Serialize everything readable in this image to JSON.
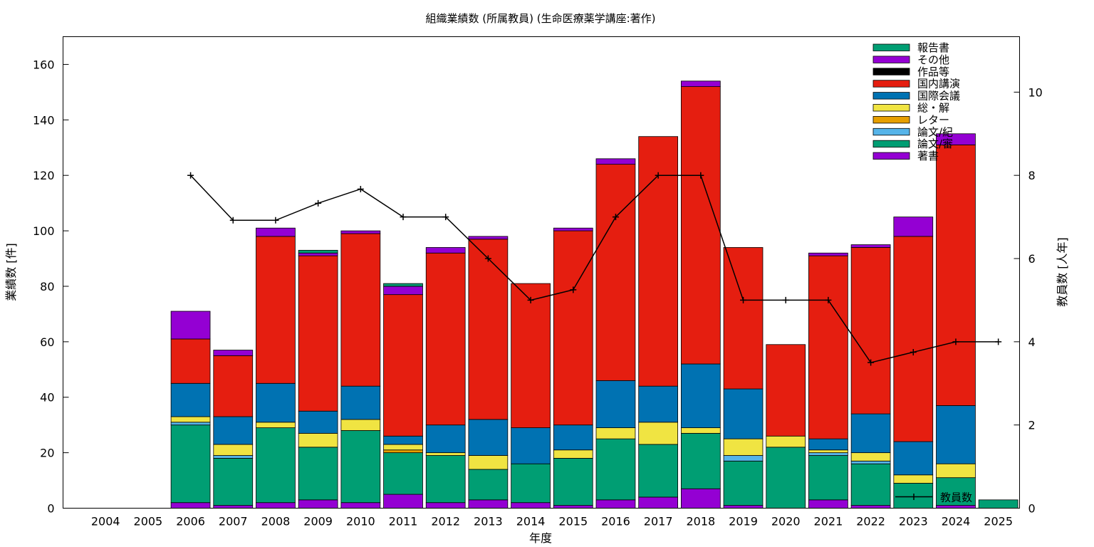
{
  "chart_data": {
    "type": "bar",
    "stacked": true,
    "title": "組織業績数 (所属教員) (生命医療薬学講座:著作)",
    "xlabel": "年度",
    "ylabel": "業績数 [件]",
    "y2label": "教員数 [人年]",
    "ylim": [
      0,
      170
    ],
    "y2lim": [
      0,
      11.333
    ],
    "yticks": [
      0,
      20,
      40,
      60,
      80,
      100,
      120,
      140,
      160
    ],
    "y2ticks": [
      0,
      2,
      4,
      6,
      8,
      10
    ],
    "grid": false,
    "legend_position": "top-right",
    "categories": [
      "2004",
      "2005",
      "2006",
      "2007",
      "2008",
      "2009",
      "2010",
      "2011",
      "2012",
      "2013",
      "2014",
      "2015",
      "2016",
      "2017",
      "2018",
      "2019",
      "2020",
      "2021",
      "2022",
      "2023",
      "2024",
      "2025"
    ],
    "series": [
      {
        "name": "著書",
        "color": "#9400d3",
        "values": [
          0,
          0,
          2,
          1,
          2,
          3,
          2,
          5,
          2,
          3,
          2,
          1,
          3,
          4,
          7,
          1,
          0,
          3,
          1,
          0,
          1,
          0
        ]
      },
      {
        "name": "論文/審",
        "color": "#009e73",
        "values": [
          0,
          0,
          28,
          17,
          27,
          19,
          26,
          15,
          17,
          11,
          14,
          17,
          22,
          19,
          20,
          16,
          22,
          16,
          15,
          9,
          10,
          3
        ]
      },
      {
        "name": "論文/紀",
        "color": "#56b4e9",
        "values": [
          0,
          0,
          1,
          1,
          0,
          0,
          0,
          0,
          0,
          0,
          0,
          0,
          0,
          0,
          0,
          2,
          0,
          1,
          1,
          0,
          0,
          0
        ]
      },
      {
        "name": "レター",
        "color": "#e69f00",
        "values": [
          0,
          0,
          0,
          0,
          0,
          0,
          0,
          1,
          0,
          0,
          0,
          0,
          0,
          0,
          0,
          0,
          0,
          0,
          0,
          0,
          0,
          0
        ]
      },
      {
        "name": "総・解",
        "color": "#f0e442",
        "values": [
          0,
          0,
          2,
          4,
          2,
          5,
          4,
          2,
          1,
          5,
          0,
          3,
          4,
          8,
          2,
          6,
          4,
          1,
          3,
          3,
          5,
          0
        ]
      },
      {
        "name": "国際会議",
        "color": "#0072b2",
        "values": [
          0,
          0,
          12,
          10,
          14,
          8,
          12,
          3,
          10,
          13,
          13,
          9,
          17,
          13,
          23,
          18,
          0,
          4,
          14,
          12,
          21,
          0
        ]
      },
      {
        "name": "国内講演",
        "color": "#e51e10",
        "values": [
          0,
          0,
          16,
          22,
          53,
          56,
          55,
          51,
          62,
          65,
          52,
          70,
          78,
          90,
          100,
          51,
          33,
          66,
          60,
          74,
          94,
          0
        ]
      },
      {
        "name": "作品等",
        "color": "#000000",
        "values": [
          0,
          0,
          0,
          0,
          0,
          0,
          0,
          0,
          0,
          0,
          0,
          0,
          0,
          0,
          0,
          0,
          0,
          0,
          0,
          0,
          0,
          0
        ]
      },
      {
        "name": "その他",
        "color": "#9400d3",
        "values": [
          0,
          0,
          10,
          2,
          3,
          1,
          1,
          3,
          2,
          1,
          0,
          1,
          2,
          0,
          2,
          0,
          0,
          1,
          1,
          7,
          4,
          0
        ]
      },
      {
        "name": "報告書",
        "color": "#009e73",
        "values": [
          0,
          0,
          0,
          0,
          0,
          1,
          0,
          1,
          0,
          0,
          0,
          0,
          0,
          0,
          0,
          0,
          0,
          0,
          0,
          0,
          0,
          0
        ]
      }
    ],
    "line_series": {
      "name": "教員数",
      "axis": "y2",
      "color": "#000000",
      "categories": [
        "2006",
        "2007",
        "2008",
        "2009",
        "2010",
        "2011",
        "2012",
        "2013",
        "2014",
        "2015",
        "2016",
        "2017",
        "2018",
        "2019",
        "2020",
        "2021",
        "2022",
        "2023",
        "2024",
        "2025"
      ],
      "values": [
        8.0,
        6.92,
        6.92,
        7.33,
        7.67,
        7.0,
        7.0,
        6.0,
        5.0,
        5.25,
        7.0,
        8.0,
        8.0,
        5.0,
        5.0,
        5.0,
        3.5,
        3.75,
        4.0,
        4.0
      ]
    }
  }
}
